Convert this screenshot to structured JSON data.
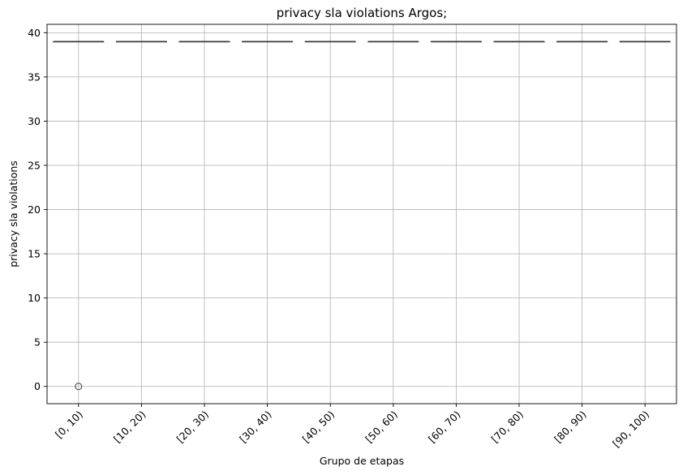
{
  "chart_data": {
    "type": "box",
    "title": "privacy sla violations Argos;",
    "xlabel": "Grupo de etapas",
    "ylabel": "privacy sla violations",
    "categories": [
      "[0, 10)",
      "[10, 20)",
      "[20, 30)",
      "[30, 40)",
      "[40, 50)",
      "[50, 60)",
      "[60, 70)",
      "[70, 80)",
      "[80, 90)",
      "[90, 100)"
    ],
    "boxes": [
      {
        "category": "[0, 10)",
        "q1": 39,
        "median": 39,
        "q3": 39,
        "whisker_low": 39,
        "whisker_high": 39,
        "outliers": [
          0
        ]
      },
      {
        "category": "[10, 20)",
        "q1": 39,
        "median": 39,
        "q3": 39,
        "whisker_low": 39,
        "whisker_high": 39,
        "outliers": []
      },
      {
        "category": "[20, 30)",
        "q1": 39,
        "median": 39,
        "q3": 39,
        "whisker_low": 39,
        "whisker_high": 39,
        "outliers": []
      },
      {
        "category": "[30, 40)",
        "q1": 39,
        "median": 39,
        "q3": 39,
        "whisker_low": 39,
        "whisker_high": 39,
        "outliers": []
      },
      {
        "category": "[40, 50)",
        "q1": 39,
        "median": 39,
        "q3": 39,
        "whisker_low": 39,
        "whisker_high": 39,
        "outliers": []
      },
      {
        "category": "[50, 60)",
        "q1": 39,
        "median": 39,
        "q3": 39,
        "whisker_low": 39,
        "whisker_high": 39,
        "outliers": []
      },
      {
        "category": "[60, 70)",
        "q1": 39,
        "median": 39,
        "q3": 39,
        "whisker_low": 39,
        "whisker_high": 39,
        "outliers": []
      },
      {
        "category": "[70, 80)",
        "q1": 39,
        "median": 39,
        "q3": 39,
        "whisker_low": 39,
        "whisker_high": 39,
        "outliers": []
      },
      {
        "category": "[80, 90)",
        "q1": 39,
        "median": 39,
        "q3": 39,
        "whisker_low": 39,
        "whisker_high": 39,
        "outliers": []
      },
      {
        "category": "[90, 100)",
        "q1": 39,
        "median": 39,
        "q3": 39,
        "whisker_low": 39,
        "whisker_high": 39,
        "outliers": []
      }
    ],
    "yticks": [
      0,
      5,
      10,
      15,
      20,
      25,
      30,
      35,
      40
    ],
    "ylim": [
      -1.95,
      40.95
    ],
    "grid": true,
    "colors": {
      "box_line": "#3d3d3d",
      "grid": "#b0b0b0"
    }
  }
}
